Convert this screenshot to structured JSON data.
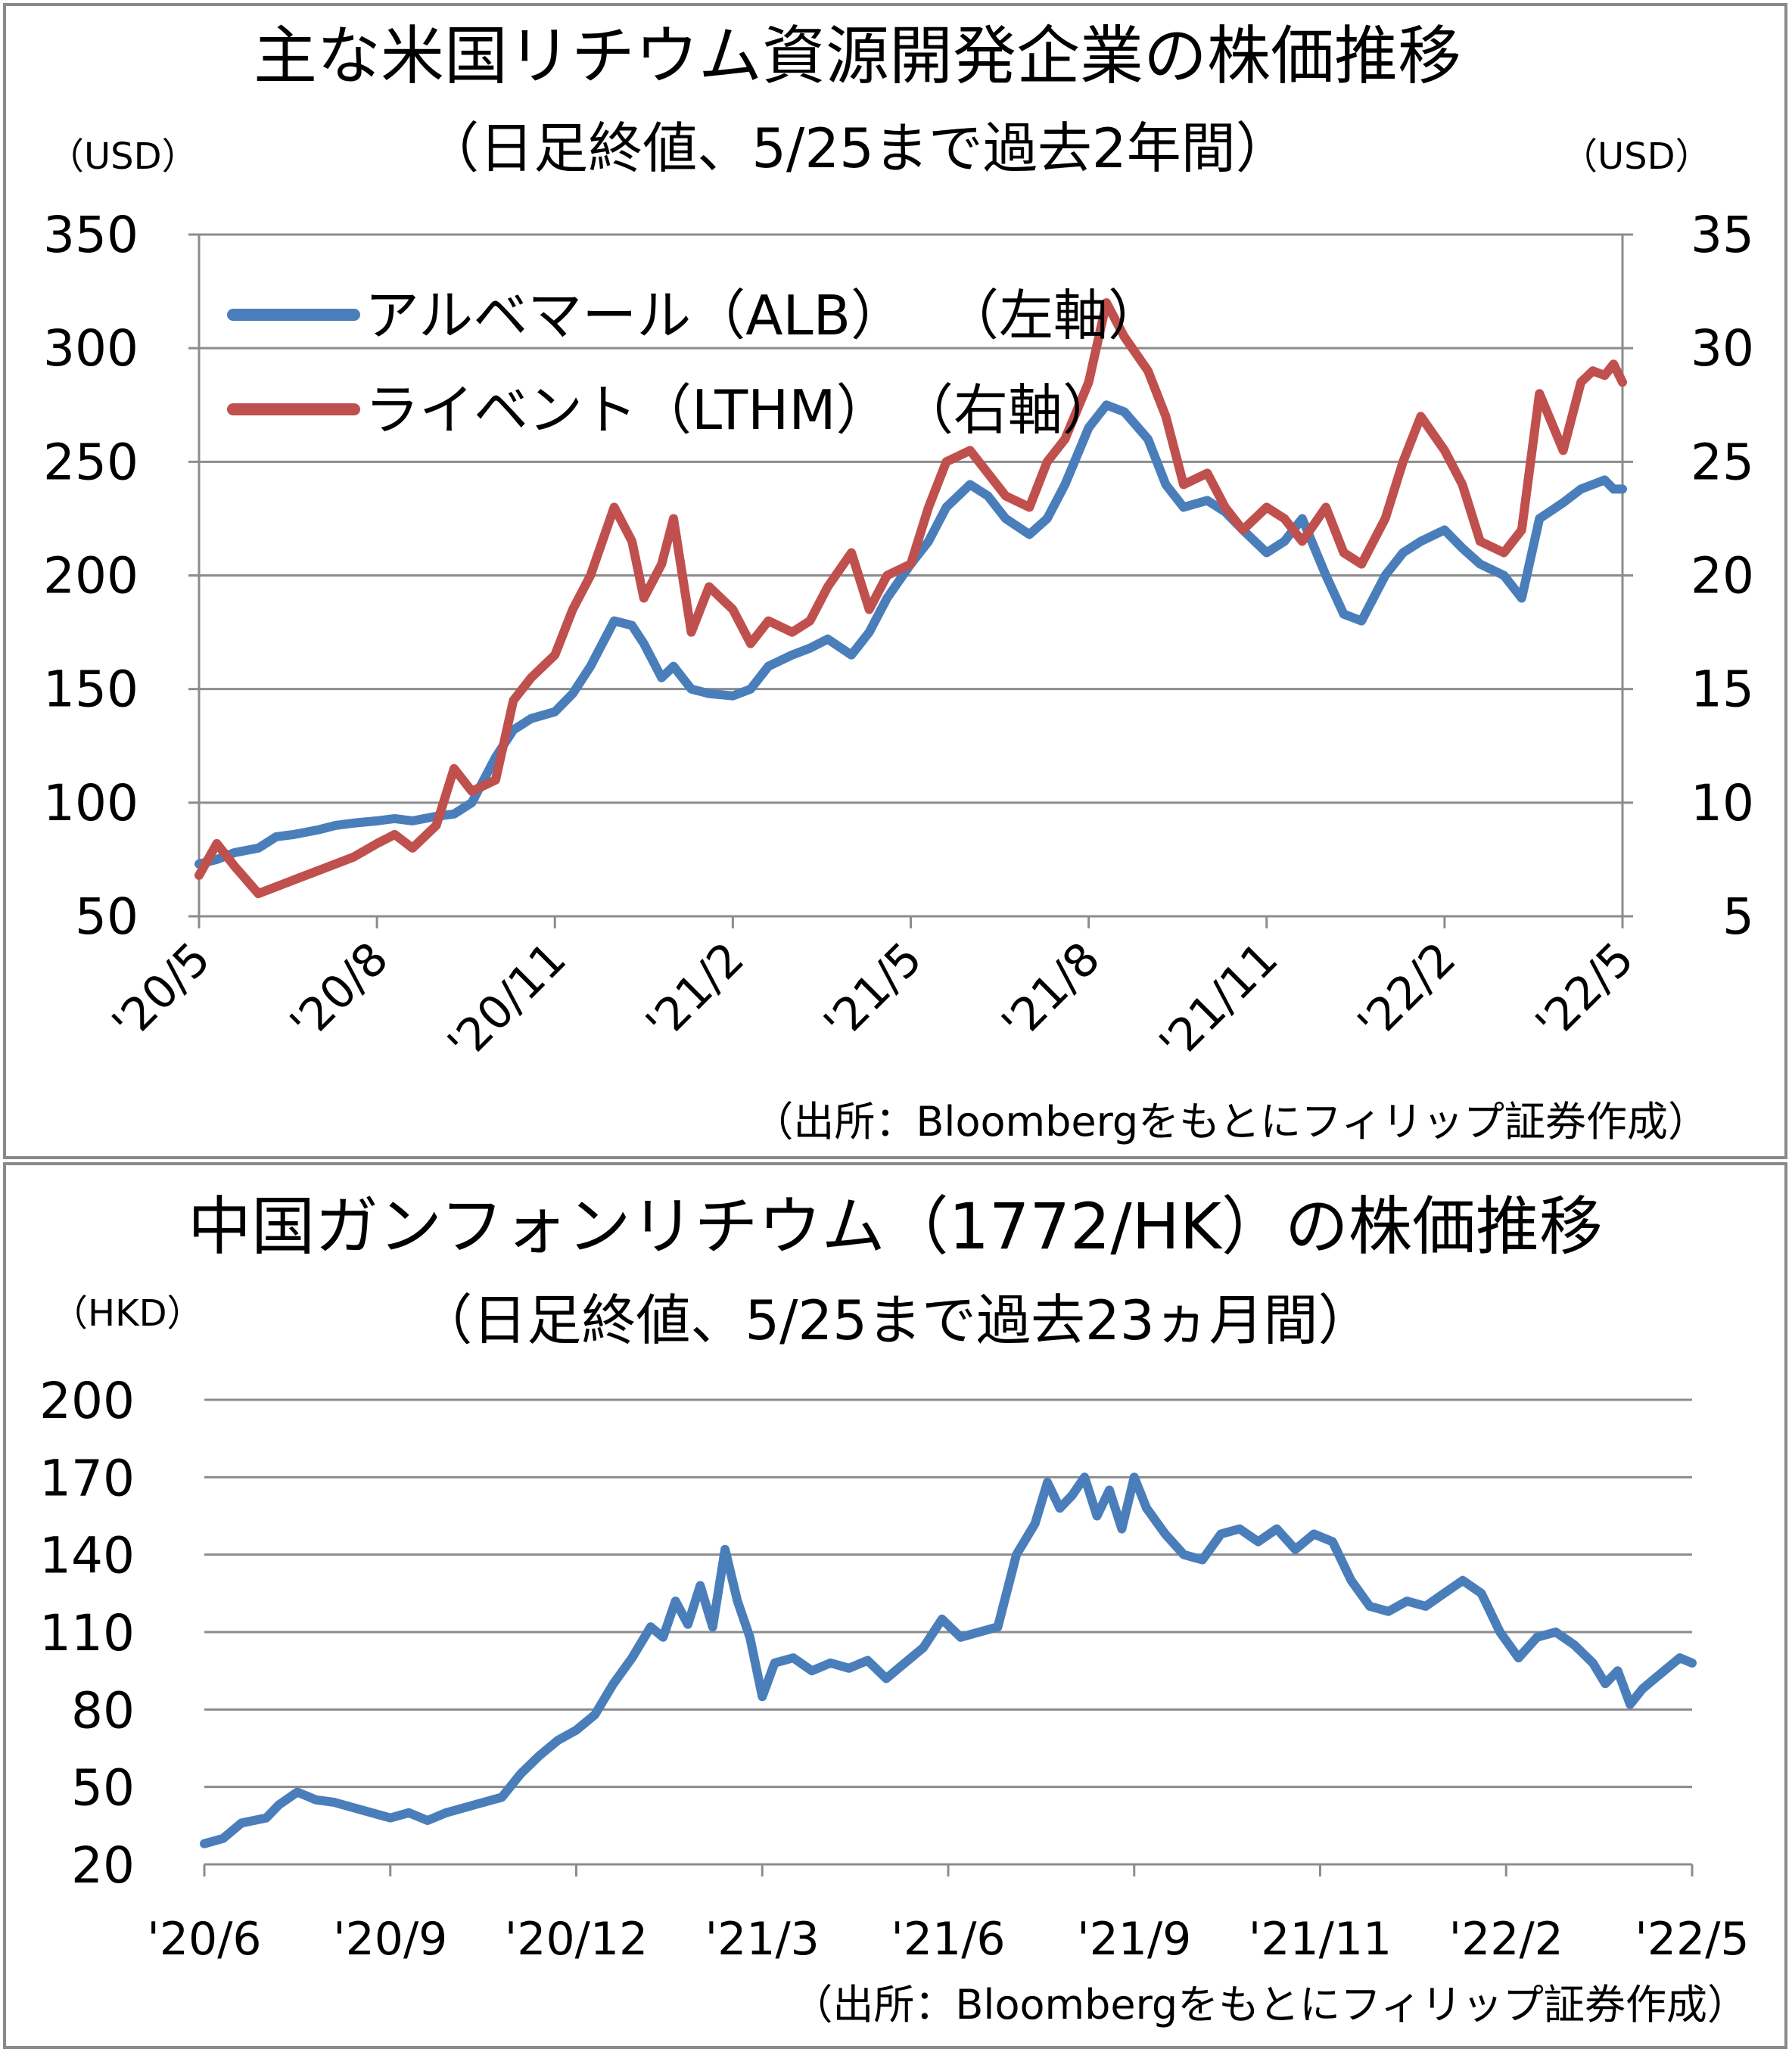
{
  "chart_data": [
    {
      "type": "line",
      "title": "主な米国リチウム資源開発企業の株価推移",
      "subtitle": "（日足終値、5/25まで過去2年間）",
      "y_left_unit": "（USD）",
      "y_right_unit": "（USD）",
      "ylim_left": [
        50,
        350
      ],
      "ylim_right": [
        5,
        35
      ],
      "yticks_left": [
        "350",
        "300",
        "250",
        "200",
        "150",
        "100",
        "50"
      ],
      "yticks_right": [
        "35",
        "30",
        "25",
        "20",
        "15",
        "10",
        "5"
      ],
      "xticks": [
        "'20/5",
        "'20/8",
        "'20/11",
        "'21/2",
        "'21/5",
        "'21/8",
        "'21/11",
        "'22/2",
        "'22/5"
      ],
      "x_range_months": [
        0,
        24
      ],
      "grid": true,
      "legend_position": "top-left",
      "source": "（出所：Bloombergをもとにフィリップ証券作成）",
      "series": [
        {
          "name": "アルベマール（ALB）",
          "axis_label": "（左軸）",
          "axis": "left",
          "color": "#4a7ebb",
          "x": [
            0,
            0.3,
            0.6,
            1,
            1.3,
            1.6,
            2,
            2.3,
            2.6,
            3,
            3.3,
            3.6,
            4,
            4.3,
            4.6,
            5,
            5.3,
            5.6,
            6,
            6.3,
            6.6,
            7,
            7.3,
            7.5,
            7.8,
            8,
            8.3,
            8.6,
            9,
            9.3,
            9.6,
            10,
            10.3,
            10.6,
            11,
            11.3,
            11.6,
            12,
            12.3,
            12.6,
            13,
            13.3,
            13.6,
            14,
            14.3,
            14.6,
            15,
            15.3,
            15.6,
            16,
            16.3,
            16.6,
            17,
            17.3,
            17.6,
            18,
            18.3,
            18.6,
            19,
            19.3,
            19.6,
            20,
            20.3,
            20.6,
            21,
            21.3,
            21.6,
            22,
            22.3,
            22.6,
            23,
            23.3,
            23.5,
            23.7,
            23.85,
            24
          ],
          "y": [
            73,
            75,
            78,
            80,
            85,
            86,
            88,
            90,
            91,
            92,
            93,
            92,
            94,
            95,
            100,
            120,
            132,
            137,
            140,
            148,
            160,
            180,
            178,
            170,
            155,
            160,
            150,
            148,
            147,
            150,
            160,
            165,
            168,
            172,
            165,
            175,
            190,
            205,
            215,
            230,
            240,
            235,
            225,
            218,
            225,
            240,
            265,
            275,
            272,
            260,
            240,
            230,
            233,
            228,
            220,
            210,
            215,
            225,
            200,
            183,
            180,
            200,
            210,
            215,
            220,
            212,
            205,
            200,
            190,
            225,
            232,
            238,
            240,
            242,
            238,
            238
          ]
        },
        {
          "name": "ライベント（LTHM）",
          "axis_label": "（右軸）",
          "axis": "right",
          "color": "#c0504d",
          "x": [
            0,
            0.3,
            0.6,
            1,
            1.3,
            1.6,
            2,
            2.3,
            2.6,
            3,
            3.3,
            3.6,
            4,
            4.3,
            4.6,
            5,
            5.3,
            5.6,
            6,
            6.3,
            6.6,
            7,
            7.3,
            7.5,
            7.8,
            8,
            8.3,
            8.6,
            9,
            9.3,
            9.6,
            10,
            10.3,
            10.6,
            11,
            11.3,
            11.6,
            12,
            12.3,
            12.6,
            13,
            13.3,
            13.6,
            14,
            14.3,
            14.6,
            15,
            15.3,
            15.6,
            16,
            16.3,
            16.6,
            17,
            17.3,
            17.6,
            18,
            18.3,
            18.6,
            19,
            19.3,
            19.6,
            20,
            20.3,
            20.6,
            21,
            21.3,
            21.6,
            22,
            22.3,
            22.6,
            23,
            23.3,
            23.5,
            23.7,
            23.85,
            24
          ],
          "y": [
            6.8,
            8.2,
            7.2,
            6.0,
            6.3,
            6.6,
            7.0,
            7.3,
            7.6,
            8.2,
            8.6,
            8.0,
            9.0,
            11.5,
            10.5,
            11,
            14.5,
            15.5,
            16.5,
            18.5,
            20,
            23,
            21.5,
            19,
            20.5,
            22.5,
            17.5,
            19.5,
            18.5,
            17,
            18,
            17.5,
            18,
            19.5,
            21,
            18.5,
            20,
            20.5,
            23,
            25,
            25.5,
            24.5,
            23.5,
            23,
            25,
            26,
            28.5,
            32,
            30.5,
            29,
            27,
            24,
            24.5,
            23,
            22,
            23,
            22.5,
            21.5,
            23,
            21,
            20.5,
            22.5,
            25,
            27,
            25.5,
            24,
            21.5,
            21,
            22,
            28,
            25.5,
            28.5,
            29,
            28.8,
            29.3,
            28.5
          ]
        }
      ]
    },
    {
      "type": "line",
      "title": "中国ガンフォンリチウム（1772/HK）の株価推移",
      "subtitle": "（日足終値、5/25まで過去23ヵ月間）",
      "y_unit": "（HKD）",
      "ylim": [
        20,
        200
      ],
      "yticks": [
        "200",
        "170",
        "140",
        "110",
        "80",
        "50",
        "20"
      ],
      "xticks": [
        "'20/6",
        "'20/9",
        "'20/12",
        "'21/3",
        "'21/6",
        "'21/9",
        "'21/11",
        "'22/2",
        "'22/5"
      ],
      "x_range_months": [
        0,
        24
      ],
      "grid": true,
      "source": "（出所：Bloombergをもとにフィリップ証券作成）",
      "series": [
        {
          "color": "#4a7ebb",
          "x": [
            0,
            0.3,
            0.6,
            1,
            1.2,
            1.5,
            1.8,
            2.1,
            2.4,
            2.7,
            3,
            3.3,
            3.6,
            3.9,
            4.2,
            4.5,
            4.8,
            5.1,
            5.4,
            5.7,
            6,
            6.3,
            6.6,
            6.9,
            7.2,
            7.4,
            7.6,
            7.8,
            8,
            8.2,
            8.4,
            8.6,
            8.8,
            9,
            9.2,
            9.5,
            9.8,
            10.1,
            10.4,
            10.7,
            11,
            11.3,
            11.6,
            11.9,
            12.2,
            12.5,
            12.8,
            13.1,
            13.4,
            13.6,
            13.8,
            14,
            14.2,
            14.4,
            14.6,
            14.8,
            15,
            15.2,
            15.5,
            15.8,
            16.1,
            16.4,
            16.7,
            17,
            17.3,
            17.6,
            17.9,
            18.2,
            18.5,
            18.8,
            19.1,
            19.4,
            19.7,
            20,
            20.3,
            20.6,
            20.9,
            21.2,
            21.5,
            21.8,
            22.1,
            22.4,
            22.6,
            22.8,
            23,
            23.2,
            23.4,
            23.6,
            23.8,
            24
          ],
          "y": [
            28,
            30,
            36,
            38,
            43,
            48,
            45,
            44,
            42,
            40,
            38,
            40,
            37,
            40,
            42,
            44,
            46,
            55,
            62,
            68,
            72,
            78,
            90,
            100,
            112,
            108,
            122,
            113,
            128,
            112,
            142,
            122,
            108,
            85,
            98,
            100,
            95,
            98,
            96,
            99,
            92,
            98,
            104,
            115,
            108,
            110,
            112,
            140,
            152,
            168,
            158,
            163,
            170,
            155,
            165,
            150,
            170,
            158,
            148,
            140,
            138,
            148,
            150,
            145,
            150,
            142,
            148,
            145,
            130,
            120,
            118,
            122,
            120,
            125,
            130,
            125,
            110,
            100,
            108,
            110,
            105,
            98,
            90,
            95,
            82,
            88,
            92,
            96,
            100,
            98
          ]
        }
      ]
    }
  ]
}
